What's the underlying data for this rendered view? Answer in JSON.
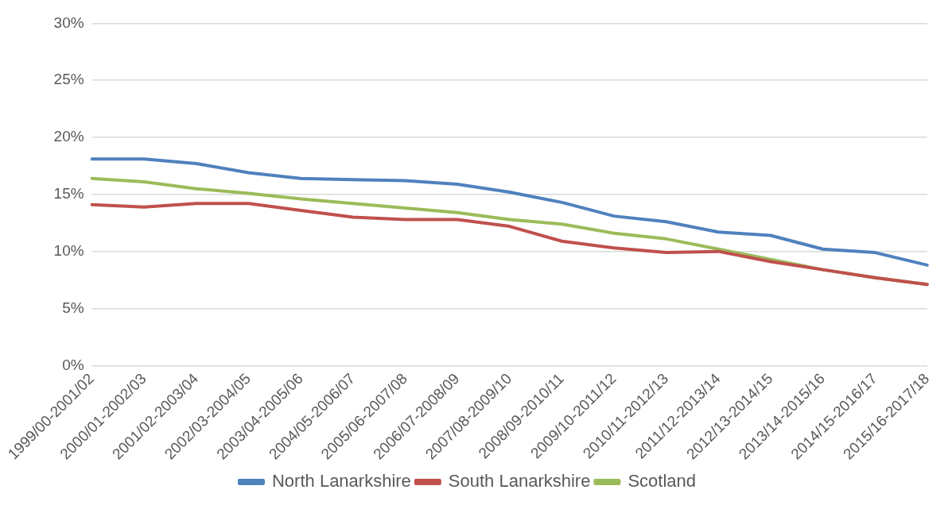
{
  "chart_data": {
    "type": "line",
    "categories": [
      "1999/00-2001/02",
      "2000/01-2002/03",
      "2001/02-2003/04",
      "2002/03-2004/05",
      "2003/04-2005/06",
      "2004/05-2006/07",
      "2005/06-2007/08",
      "2006/07-2008/09",
      "2007/08-2009/10",
      "2008/09-2010/11",
      "2009/10-2011/12",
      "2010/11-2012/13",
      "2011/12-2013/14",
      "2012/13-2014/15",
      "2013/14-2015/16",
      "2014/15-2016/17",
      "2015/16-2017/18"
    ],
    "series": [
      {
        "name": "North Lanarkshire",
        "color": "#4f81bd",
        "values": [
          18.1,
          18.1,
          17.7,
          16.9,
          16.4,
          16.3,
          16.2,
          15.9,
          15.2,
          14.3,
          13.1,
          12.6,
          11.7,
          11.4,
          10.2,
          9.9,
          8.8
        ]
      },
      {
        "name": "South Lanarkshire",
        "color": "#c0504d",
        "values": [
          14.1,
          13.9,
          14.2,
          14.2,
          13.6,
          13.0,
          12.8,
          12.8,
          12.2,
          10.9,
          10.3,
          9.9,
          10.0,
          9.1,
          8.4,
          7.7,
          7.1
        ]
      },
      {
        "name": "Scotland",
        "color": "#9bbb59",
        "values": [
          16.4,
          16.1,
          15.5,
          15.1,
          14.6,
          14.2,
          13.8,
          13.4,
          12.8,
          12.4,
          11.6,
          11.1,
          10.2,
          9.3,
          8.4,
          7.7,
          7.1
        ]
      }
    ],
    "ylim": [
      0,
      30
    ],
    "yticks": [
      {
        "value": 0,
        "label": "0%"
      },
      {
        "value": 5,
        "label": "5%"
      },
      {
        "value": 10,
        "label": "10%"
      },
      {
        "value": 15,
        "label": "15%"
      },
      {
        "value": 20,
        "label": "20%"
      },
      {
        "value": 25,
        "label": "25%"
      },
      {
        "value": 30,
        "label": "30%"
      }
    ],
    "grid": "y",
    "legend": "bottom",
    "marker": "none",
    "line_style": "solid"
  }
}
